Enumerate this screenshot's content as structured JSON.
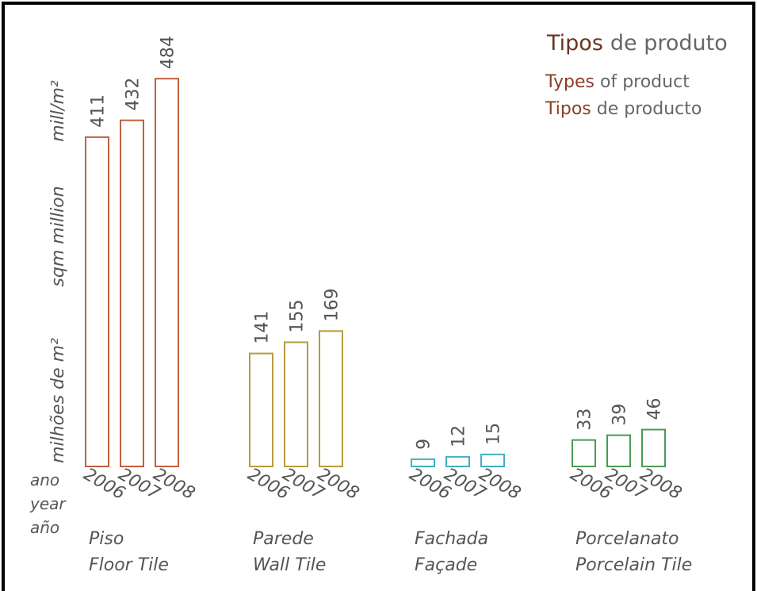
{
  "chart_data": {
    "type": "grouped-bar",
    "title": [
      "Tipos",
      "de produto"
    ],
    "subtitles": [
      [
        "Types",
        "of product"
      ],
      [
        "Tipos",
        "de producto"
      ]
    ],
    "y_label": [
      "milhões de m²",
      "sqm million",
      "mill/m²"
    ],
    "x_label": [
      "ano",
      "year",
      "año"
    ],
    "years": [
      "2006",
      "2007",
      "2008"
    ],
    "groups": [
      {
        "name": [
          "Piso",
          "Floor Tile"
        ],
        "color": "#c0603f",
        "values": [
          411,
          432,
          484
        ]
      },
      {
        "name": [
          "Parede",
          "Wall Tile"
        ],
        "color": "#b59c3e",
        "values": [
          141,
          155,
          169
        ]
      },
      {
        "name": [
          "Fachada",
          "Façade"
        ],
        "color": "#3fb0c0",
        "values": [
          9,
          12,
          15
        ]
      },
      {
        "name": [
          "Porcelanato",
          "Porcelain Tile"
        ],
        "color": "#4a9a52",
        "values": [
          33,
          39,
          46
        ]
      }
    ]
  }
}
